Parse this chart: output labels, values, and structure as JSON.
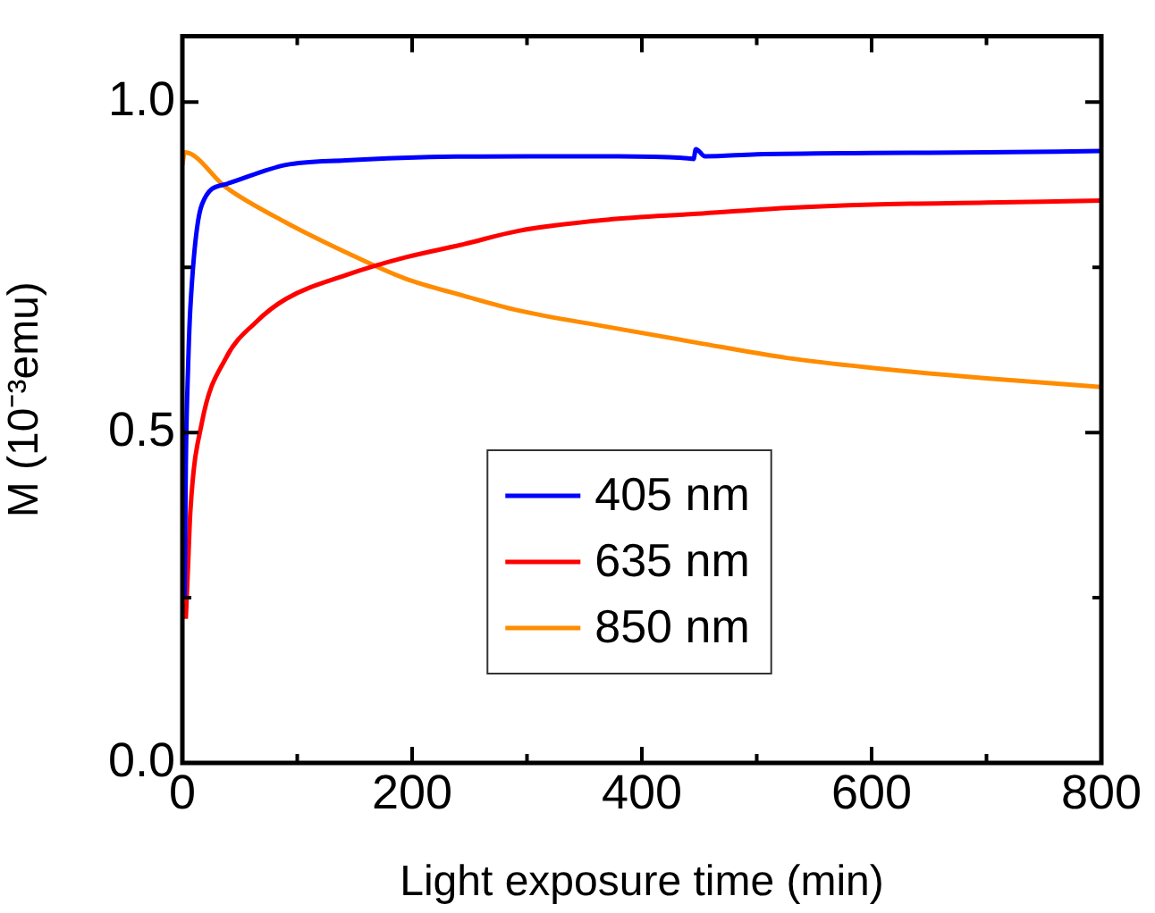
{
  "chart_data": {
    "type": "line",
    "xlabel": "Light exposure time (min)",
    "ylabel": "M (10⁻³emu)",
    "xlim": [
      0,
      800
    ],
    "ylim": [
      0,
      1.1
    ],
    "xticks": [
      0,
      {
        "value": 100,
        "label": null
      },
      200,
      {
        "value": 300,
        "label": null
      },
      400,
      {
        "value": 500,
        "label": null
      },
      600,
      {
        "value": 700,
        "label": null
      },
      800
    ],
    "yticks": [
      {
        "value": 0,
        "label": "0.0"
      },
      {
        "value": 0.25,
        "label": null
      },
      {
        "value": 0.5,
        "label": "0.5"
      },
      {
        "value": 0.75,
        "label": null
      },
      {
        "value": 1,
        "label": "1.0"
      }
    ],
    "grid": false,
    "legend": "bottom",
    "marker": "none",
    "line_style": "solid",
    "series": [
      {
        "name": "405 nm",
        "color": "#0000ff",
        "x": [
          2,
          3,
          5,
          7,
          17,
          38,
          90,
          142,
          215,
          300,
          380,
          440,
          445,
          447,
          455,
          500,
          600,
          700,
          800
        ],
        "values": [
          0.25,
          0.45,
          0.6,
          0.69,
          0.845,
          0.876,
          0.905,
          0.912,
          0.917,
          0.918,
          0.918,
          0.915,
          0.914,
          0.929,
          0.918,
          0.921,
          0.923,
          0.924,
          0.926
        ]
      },
      {
        "name": "635 nm",
        "color": "#ff0000",
        "x": [
          3,
          5,
          7,
          17,
          38,
          64,
          90,
          142,
          194,
          245,
          292,
          370,
          448,
          526,
          600,
          700,
          800
        ],
        "values": [
          0.218,
          0.3,
          0.382,
          0.515,
          0.613,
          0.667,
          0.702,
          0.738,
          0.765,
          0.785,
          0.805,
          0.822,
          0.831,
          0.84,
          0.845,
          0.848,
          0.851
        ]
      },
      {
        "name": "850 nm",
        "color": "#ff8c00",
        "x": [
          0,
          2,
          38,
          90,
          142,
          194,
          245,
          292,
          370,
          448,
          526,
          600,
          700,
          800
        ],
        "values": [
          0.905,
          0.924,
          0.871,
          0.818,
          0.773,
          0.733,
          0.707,
          0.685,
          0.66,
          0.636,
          0.613,
          0.598,
          0.582,
          0.569
        ]
      }
    ]
  }
}
